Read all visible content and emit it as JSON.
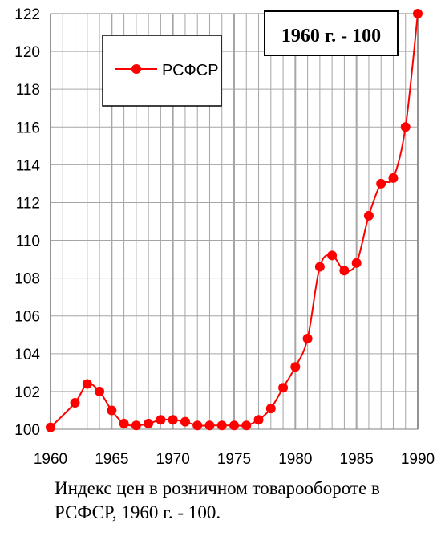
{
  "chart_data": {
    "type": "line",
    "series": [
      {
        "name": "РСФСР",
        "color": "#ff0000",
        "points": [
          {
            "x": 1960,
            "y": 100.1
          },
          {
            "x": 1962,
            "y": 101.4
          },
          {
            "x": 1963,
            "y": 102.4
          },
          {
            "x": 1964,
            "y": 102.0
          },
          {
            "x": 1965,
            "y": 101.0
          },
          {
            "x": 1966,
            "y": 100.3
          },
          {
            "x": 1967,
            "y": 100.2
          },
          {
            "x": 1968,
            "y": 100.3
          },
          {
            "x": 1969,
            "y": 100.5
          },
          {
            "x": 1970,
            "y": 100.5
          },
          {
            "x": 1971,
            "y": 100.4
          },
          {
            "x": 1972,
            "y": 100.2
          },
          {
            "x": 1973,
            "y": 100.2
          },
          {
            "x": 1974,
            "y": 100.2
          },
          {
            "x": 1975,
            "y": 100.2
          },
          {
            "x": 1976,
            "y": 100.2
          },
          {
            "x": 1977,
            "y": 100.5
          },
          {
            "x": 1978,
            "y": 101.1
          },
          {
            "x": 1979,
            "y": 102.2
          },
          {
            "x": 1980,
            "y": 103.3
          },
          {
            "x": 1981,
            "y": 104.8
          },
          {
            "x": 1982,
            "y": 108.6
          },
          {
            "x": 1983,
            "y": 109.2
          },
          {
            "x": 1984,
            "y": 108.4
          },
          {
            "x": 1985,
            "y": 108.8
          },
          {
            "x": 1986,
            "y": 111.3
          },
          {
            "x": 1987,
            "y": 113.0
          },
          {
            "x": 1988,
            "y": 113.3
          },
          {
            "x": 1989,
            "y": 116.0
          },
          {
            "x": 1990,
            "y": 122.0
          }
        ]
      }
    ],
    "xlim": [
      1960,
      1990
    ],
    "ylim": [
      100,
      122
    ],
    "x_ticks": [
      "1960",
      "1965",
      "1970",
      "1975",
      "1980",
      "1985",
      "1990"
    ],
    "y_ticks": [
      "100",
      "102",
      "104",
      "106",
      "108",
      "110",
      "112",
      "114",
      "116",
      "118",
      "120",
      "122"
    ],
    "annotation": "1960 г. - 100",
    "grid": true,
    "legend_position": "top-left",
    "gridline_color": "#a6a6a6"
  },
  "caption": "Индекс цен в розничном товарообороте в РСФСР, 1960 г. - 100."
}
